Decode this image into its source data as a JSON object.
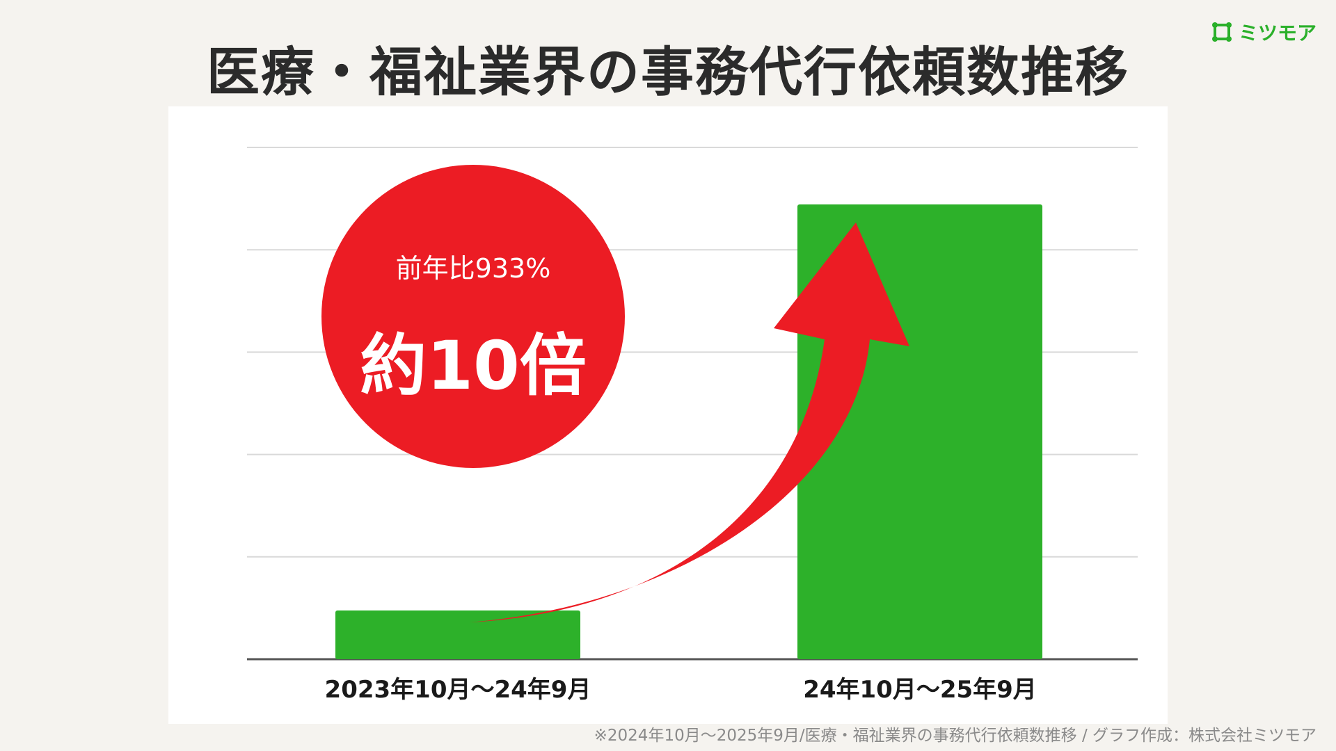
{
  "header": {
    "title": "医療・福祉業界の事務代行依頼数推移",
    "brand": "ミツモア"
  },
  "chart_data": {
    "type": "bar",
    "title": "医療・福祉業界の事務代行依頼数推移",
    "categories": [
      "2023年10月～24年9月",
      "24年10月～25年9月"
    ],
    "values": [
      1,
      9.33
    ],
    "ylim": [
      0,
      10.5
    ],
    "grid": true,
    "bar_color": "#2db12a",
    "annotation": {
      "line1": "前年比933%",
      "line2": "約10倍",
      "color": "#ec1c24"
    }
  },
  "footnote": "※2024年10月～2025年9月/医療・福祉業界の事務代行依頼数推移 / グラフ作成：株式会社ミツモア",
  "colors": {
    "background": "#f5f3ef",
    "accent": "#ec1c24",
    "bar": "#2db12a",
    "brand": "#2ab02a"
  }
}
